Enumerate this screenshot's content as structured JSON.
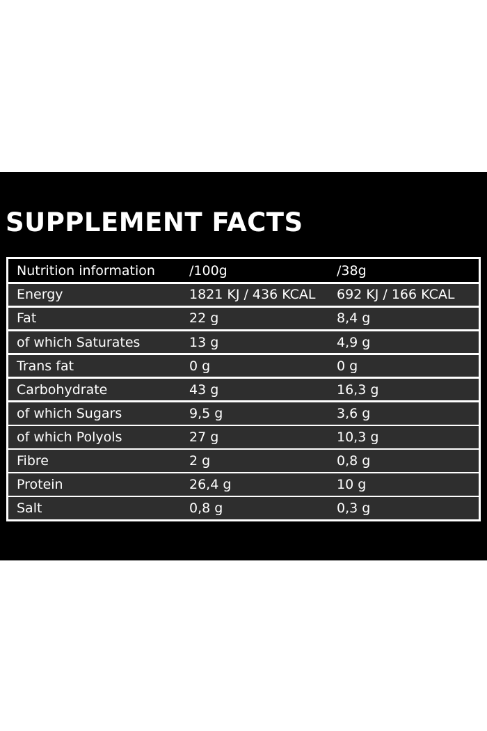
{
  "title": "SUPPLEMENT FACTS",
  "table": {
    "header": [
      "Nutrition information",
      "/100g",
      "/38g"
    ],
    "rows": [
      [
        "Energy",
        "1821 KJ / 436 KCAL",
        "692 KJ / 166 KCAL"
      ],
      [
        "Fat",
        "22 g",
        "8,4 g"
      ],
      [
        "of which Saturates",
        "13 g",
        "4,9 g"
      ],
      [
        "Trans fat",
        "0 g",
        "0 g"
      ],
      [
        "Carbohydrate",
        "43 g",
        "16,3 g"
      ],
      [
        "of which Sugars",
        "9,5 g",
        "3,6 g"
      ],
      [
        "of which Polyols",
        "27 g",
        "10,3 g"
      ],
      [
        "Fibre",
        "2 g",
        "0,8 g"
      ],
      [
        "Protein",
        "26,4 g",
        "10 g"
      ],
      [
        "Salt",
        "0,8 g",
        "0,3 g"
      ]
    ]
  }
}
